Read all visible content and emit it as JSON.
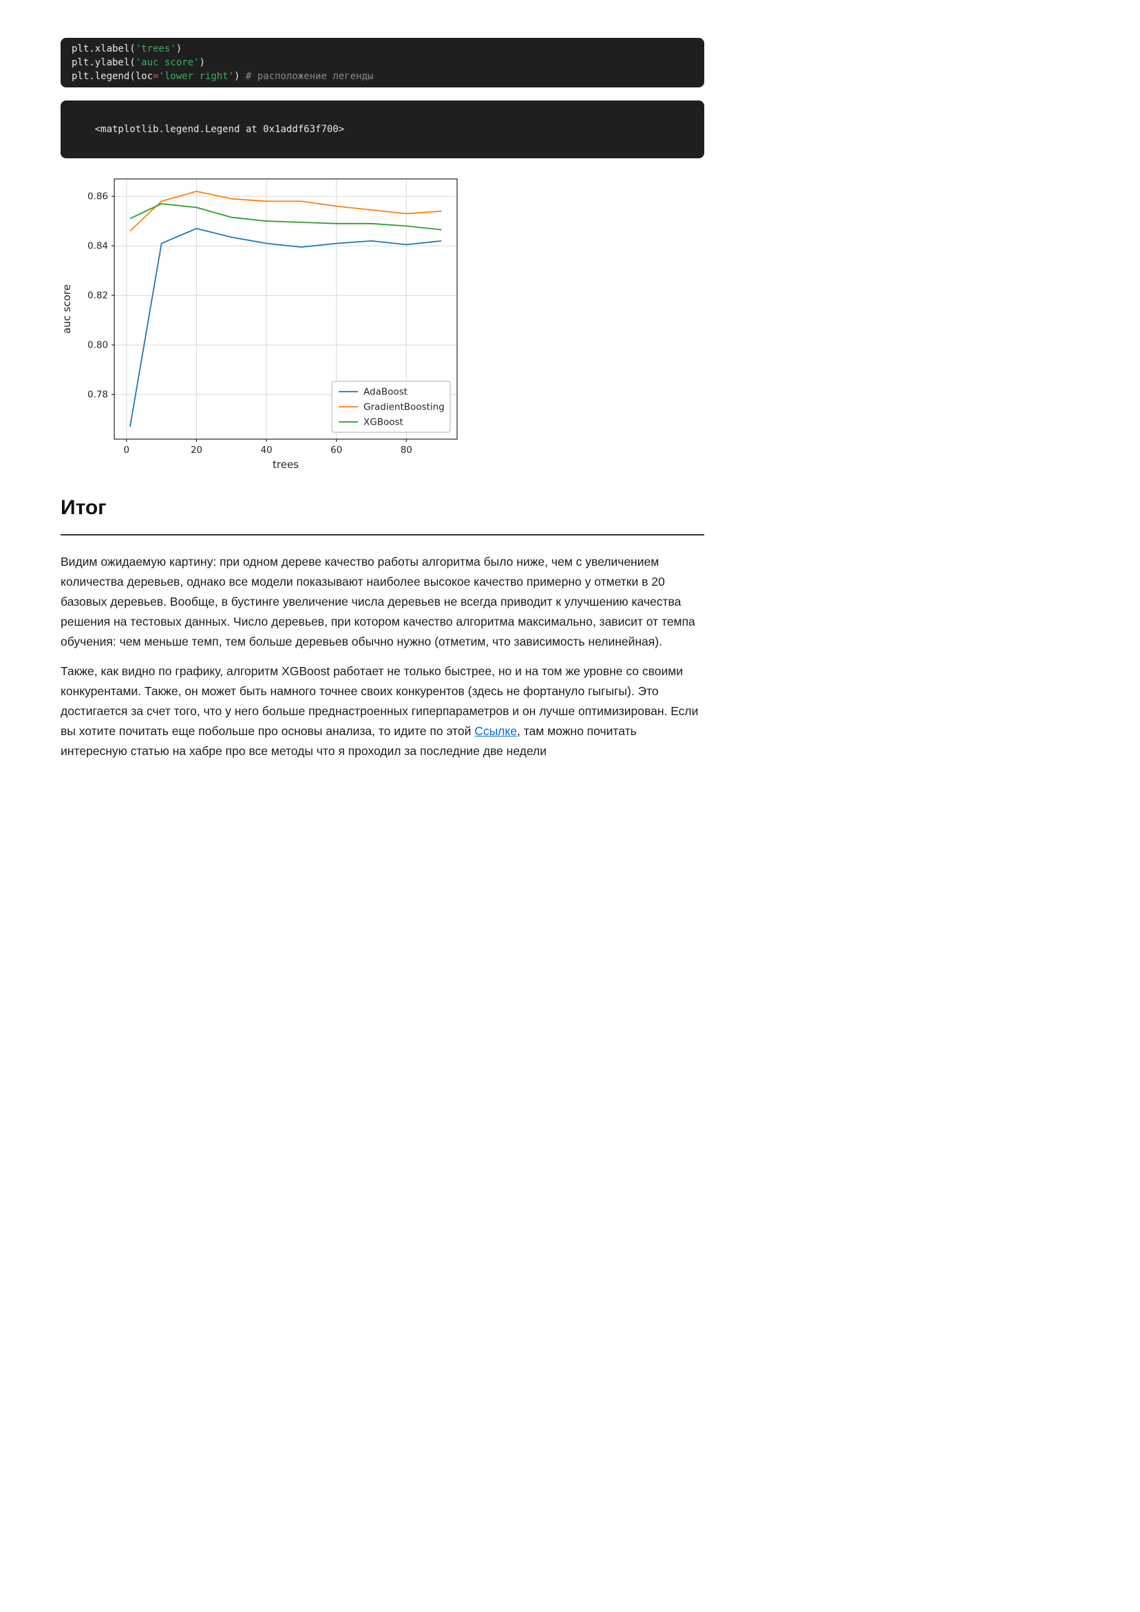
{
  "code_cell": {
    "bg": "#1f1f1f",
    "token_colors": {
      "plain": "#e8e8e8",
      "string": "#3cae5c",
      "operator": "#e0524d",
      "comment": "#8a8a8a"
    },
    "lines": [
      [
        {
          "t": "plt.xlabel(",
          "c": "plain"
        },
        {
          "t": "'trees'",
          "c": "string"
        },
        {
          "t": ")",
          "c": "plain"
        }
      ],
      [
        {
          "t": "plt.ylabel(",
          "c": "plain"
        },
        {
          "t": "'auc score'",
          "c": "string"
        },
        {
          "t": ")",
          "c": "plain"
        }
      ],
      [
        {
          "t": "plt.legend(loc",
          "c": "plain"
        },
        {
          "t": "=",
          "c": "operator"
        },
        {
          "t": "'lower right'",
          "c": "string"
        },
        {
          "t": ") ",
          "c": "plain"
        },
        {
          "t": "# расположение легенды",
          "c": "comment"
        }
      ]
    ]
  },
  "output_cell": {
    "text": "<matplotlib.legend.Legend at 0x1addf63f700>"
  },
  "chart_data": {
    "type": "line",
    "title": "",
    "xlabel": "trees",
    "ylabel": "auc score",
    "x": [
      1,
      10,
      20,
      30,
      40,
      50,
      60,
      70,
      80,
      90
    ],
    "series": [
      {
        "name": "AdaBoost",
        "color": "#1f77b4",
        "values": [
          0.767,
          0.841,
          0.847,
          0.8435,
          0.841,
          0.8395,
          0.841,
          0.842,
          0.8405,
          0.842
        ]
      },
      {
        "name": "GradientBoosting",
        "color": "#ff7f0e",
        "values": [
          0.846,
          0.858,
          0.862,
          0.859,
          0.858,
          0.858,
          0.856,
          0.8545,
          0.853,
          0.854
        ]
      },
      {
        "name": "XGBoost",
        "color": "#2ca02c",
        "values": [
          0.851,
          0.857,
          0.8555,
          0.8515,
          0.85,
          0.8495,
          0.849,
          0.849,
          0.848,
          0.8465
        ]
      }
    ],
    "xlim": [
      -3.5,
      94.5
    ],
    "ylim": [
      0.762,
      0.867
    ],
    "xticks": [
      0,
      20,
      40,
      60,
      80
    ],
    "xtick_labels": [
      "0",
      "20",
      "40",
      "60",
      "80"
    ],
    "yticks": [
      0.78,
      0.8,
      0.82,
      0.84,
      0.86
    ],
    "ytick_labels": [
      "0.78",
      "0.80",
      "0.82",
      "0.84",
      "0.86"
    ],
    "grid": true,
    "legend_position": "lower right"
  },
  "summary": {
    "heading": "Итог",
    "link_color": "#0969da",
    "paragraph1": "Видим ожидаемую картину: при одном дереве качество работы алгоритма было ниже, чем с увеличением количества деревьев, однако все модели показывают наиболее высокое качество примерно у отметки в 20 базовых деревьев. Вообще, в бустинге увеличение числа деревьев не всегда приводит к улучшению качества решения на тестовых данных. Число деревьев, при котором качество алгоритма максимально, зависит от темпа обучения: чем меньше темп, тем больше деревьев обычно нужно (отметим, что зависимость нелинейная).",
    "p2_before_link": "Также, как видно по графику, алгоритм XGBoost работает не только быстрее, но и на том же уровне со своими конкурентами. Также, он может быть намного точнее своих конкурентов (здесь не фортануло гыгыгы). Это достигается за счет того, что у него больше преднастроенных гиперпараметров и он лучше оптимизирован. Если вы хотите почитать еще побольше про основы анализа, то идите по этой ",
    "link_text": "Ссылке",
    "p2_after_link": ", там можно почитать интересную статью на хабре про все методы что я проходил за последние две недели"
  }
}
